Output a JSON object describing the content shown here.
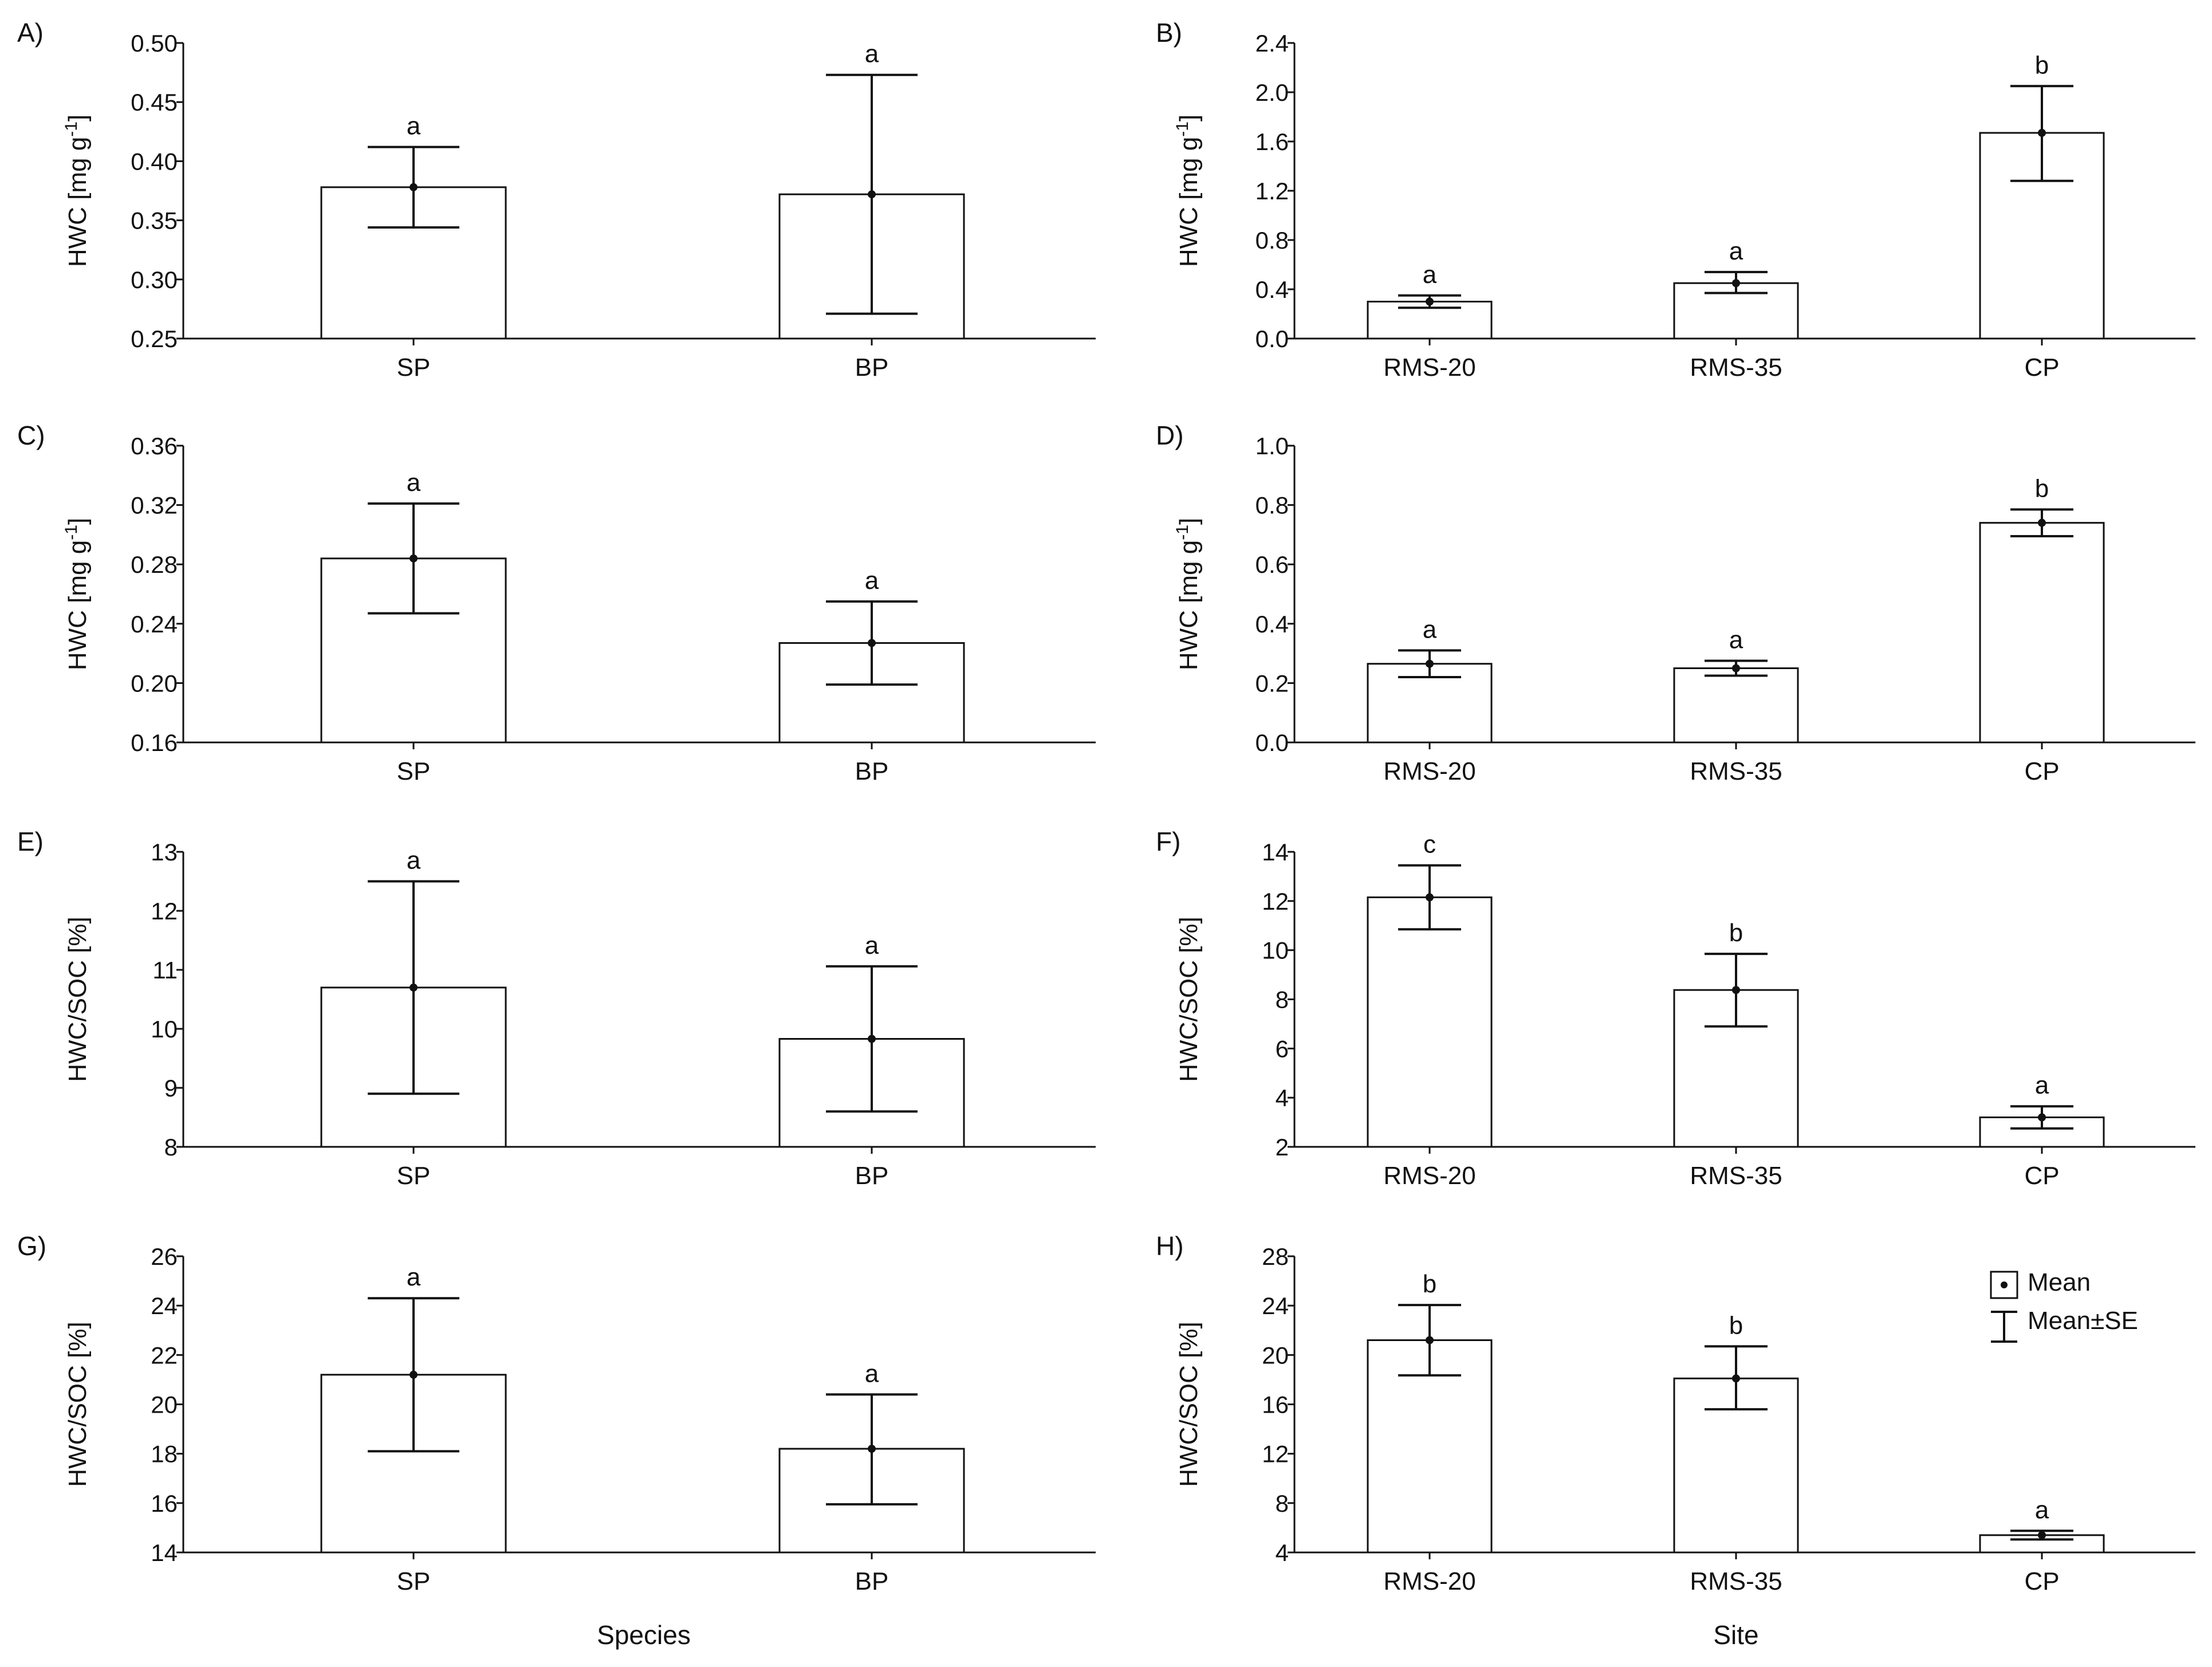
{
  "chart_data": [
    {
      "id": "A",
      "panel_label": "A)",
      "type": "bar",
      "ylabel_main": "HWC [mg g",
      "ylabel_sup": "-1",
      "ylabel_end": "]",
      "categories": [
        "SP",
        "BP"
      ],
      "ylim": [
        0.25,
        0.5
      ],
      "yticks": [
        "0.25",
        "0.30",
        "0.35",
        "0.40",
        "0.45",
        "0.50"
      ],
      "values": [
        0.378,
        0.372
      ],
      "se_upper": [
        0.412,
        0.473
      ],
      "se_lower": [
        0.344,
        0.271
      ],
      "letters": [
        "a",
        "a"
      ]
    },
    {
      "id": "B",
      "panel_label": "B)",
      "type": "bar",
      "ylabel_main": "HWC [mg g",
      "ylabel_sup": "-1",
      "ylabel_end": "]",
      "categories": [
        "RMS-20",
        "RMS-35",
        "CP"
      ],
      "ylim": [
        0,
        2.4
      ],
      "yticks": [
        "0.0",
        "0.4",
        "0.8",
        "1.2",
        "1.6",
        "2.0",
        "2.4"
      ],
      "values": [
        0.3,
        0.45,
        1.67
      ],
      "se_upper": [
        0.35,
        0.54,
        2.05
      ],
      "se_lower": [
        0.25,
        0.37,
        1.28
      ],
      "letters": [
        "a",
        "a",
        "b"
      ]
    },
    {
      "id": "C",
      "panel_label": "C)",
      "type": "bar",
      "ylabel_main": "HWC [mg g",
      "ylabel_sup": "-1",
      "ylabel_end": "]",
      "categories": [
        "SP",
        "BP"
      ],
      "ylim": [
        0.16,
        0.36
      ],
      "yticks": [
        "0.16",
        "0.20",
        "0.24",
        "0.28",
        "0.32",
        "0.36"
      ],
      "values": [
        0.284,
        0.227
      ],
      "se_upper": [
        0.321,
        0.255
      ],
      "se_lower": [
        0.247,
        0.199
      ],
      "letters": [
        "a",
        "a"
      ]
    },
    {
      "id": "D",
      "panel_label": "D)",
      "type": "bar",
      "ylabel_main": "HWC [mg g",
      "ylabel_sup": "-1",
      "ylabel_end": "]",
      "categories": [
        "RMS-20",
        "RMS-35",
        "CP"
      ],
      "ylim": [
        0,
        1.0
      ],
      "yticks": [
        "0.0",
        "0.2",
        "0.4",
        "0.6",
        "0.8",
        "1.0"
      ],
      "values": [
        0.265,
        0.25,
        0.74
      ],
      "se_upper": [
        0.31,
        0.275,
        0.785
      ],
      "se_lower": [
        0.22,
        0.225,
        0.695
      ],
      "letters": [
        "a",
        "a",
        "b"
      ]
    },
    {
      "id": "E",
      "panel_label": "E)",
      "type": "bar",
      "ylabel_main": "HWC/SOC [%]",
      "categories": [
        "SP",
        "BP"
      ],
      "ylim": [
        8,
        13
      ],
      "yticks": [
        "8",
        "9",
        "10",
        "11",
        "12",
        "13"
      ],
      "values": [
        10.7,
        9.83
      ],
      "se_upper": [
        12.5,
        11.06
      ],
      "se_lower": [
        8.9,
        8.6
      ],
      "letters": [
        "a",
        "a"
      ]
    },
    {
      "id": "F",
      "panel_label": "F)",
      "type": "bar",
      "ylabel_main": "HWC/SOC [%]",
      "categories": [
        "RMS-20",
        "RMS-35",
        "CP"
      ],
      "ylim": [
        2,
        14
      ],
      "yticks": [
        "2",
        "4",
        "6",
        "8",
        "10",
        "12",
        "14"
      ],
      "values": [
        12.15,
        8.38,
        3.2
      ],
      "se_upper": [
        13.45,
        9.85,
        3.65
      ],
      "se_lower": [
        10.85,
        6.9,
        2.75
      ],
      "letters": [
        "c",
        "b",
        "a"
      ]
    },
    {
      "id": "G",
      "panel_label": "G)",
      "type": "bar",
      "ylabel_main": "HWC/SOC [%]",
      "categories": [
        "SP",
        "BP"
      ],
      "ylim": [
        14,
        26
      ],
      "yticks": [
        "14",
        "16",
        "18",
        "20",
        "22",
        "24",
        "26"
      ],
      "values": [
        21.2,
        18.2
      ],
      "se_upper": [
        24.3,
        20.4
      ],
      "se_lower": [
        18.1,
        15.95
      ],
      "letters": [
        "a",
        "a"
      ]
    },
    {
      "id": "H",
      "panel_label": "H)",
      "type": "bar",
      "ylabel_main": "HWC/SOC [%]",
      "categories": [
        "RMS-20",
        "RMS-35",
        "CP"
      ],
      "ylim": [
        4,
        28
      ],
      "yticks": [
        "4",
        "8",
        "12",
        "16",
        "20",
        "24",
        "28"
      ],
      "values": [
        21.2,
        18.1,
        5.4
      ],
      "se_upper": [
        24.05,
        20.7,
        5.75
      ],
      "se_lower": [
        18.35,
        15.6,
        5.05
      ],
      "letters": [
        "b",
        "b",
        "a"
      ]
    }
  ],
  "xlabels": {
    "left": "Species",
    "right": "Site"
  },
  "legend": {
    "mean": "Mean",
    "mean_se": "Mean±SE"
  }
}
